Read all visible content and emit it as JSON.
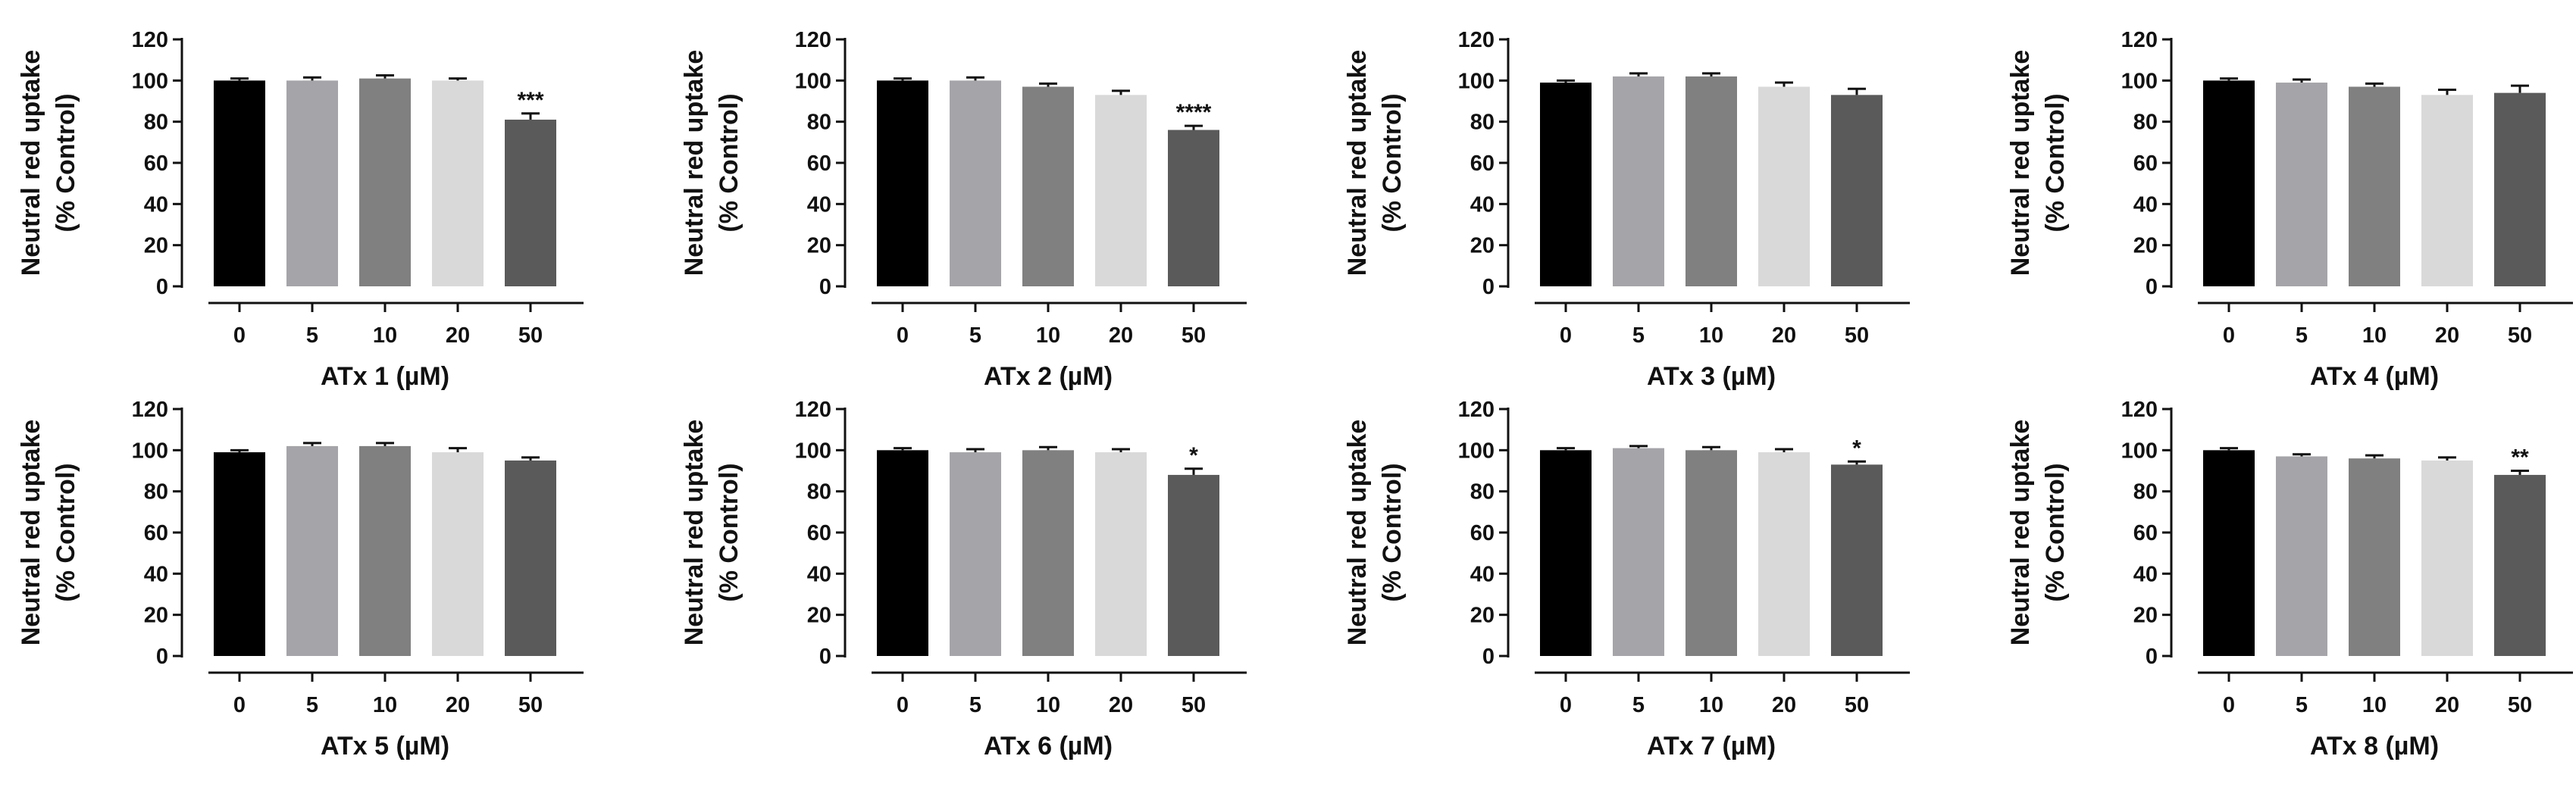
{
  "y_axis_label_line1": "Neutral red uptake",
  "y_axis_label_line2": "(% Control)",
  "colors": {
    "conc_0": "#000000",
    "conc_5": "#a5a5a9",
    "conc_10": "#808080",
    "conc_20": "#d9d9d9",
    "conc_50": "#5a5a5a",
    "axis": "#111111"
  },
  "chart_data": [
    {
      "type": "bar",
      "title": "",
      "xlabel": "ATx 1 (µM)",
      "ylabel": "Neutral red uptake (% Control)",
      "ylim": [
        0,
        120
      ],
      "yticks": [
        0,
        20,
        40,
        60,
        80,
        100,
        120
      ],
      "categories": [
        "0",
        "5",
        "10",
        "20",
        "50"
      ],
      "values": [
        100,
        100,
        101,
        100,
        81
      ],
      "errors": [
        1,
        1.5,
        1.5,
        1,
        3
      ],
      "significance": [
        "",
        "",
        "",
        "",
        "***"
      ]
    },
    {
      "type": "bar",
      "title": "",
      "xlabel": "ATx 2 (µM)",
      "ylabel": "Neutral red uptake (% Control)",
      "ylim": [
        0,
        120
      ],
      "yticks": [
        0,
        20,
        40,
        60,
        80,
        100,
        120
      ],
      "categories": [
        "0",
        "5",
        "10",
        "20",
        "50"
      ],
      "values": [
        100,
        100,
        97,
        93,
        76
      ],
      "errors": [
        1,
        1.5,
        1.5,
        2,
        2
      ],
      "significance": [
        "",
        "",
        "",
        "",
        "****"
      ]
    },
    {
      "type": "bar",
      "title": "",
      "xlabel": "ATx 3 (µM)",
      "ylabel": "Neutral red uptake (% Control)",
      "ylim": [
        0,
        120
      ],
      "yticks": [
        0,
        20,
        40,
        60,
        80,
        100,
        120
      ],
      "categories": [
        "0",
        "5",
        "10",
        "20",
        "50"
      ],
      "values": [
        99,
        102,
        102,
        97,
        93
      ],
      "errors": [
        1,
        1.5,
        1.5,
        2,
        3
      ],
      "significance": [
        "",
        "",
        "",
        "",
        ""
      ]
    },
    {
      "type": "bar",
      "title": "",
      "xlabel": "ATx 4 (µM)",
      "ylabel": "Neutral red uptake (% Control)",
      "ylim": [
        0,
        120
      ],
      "yticks": [
        0,
        20,
        40,
        60,
        80,
        100,
        120
      ],
      "categories": [
        "0",
        "5",
        "10",
        "20",
        "50"
      ],
      "values": [
        100,
        99,
        97,
        93,
        94
      ],
      "errors": [
        1,
        1.5,
        1.5,
        2.5,
        3.5
      ],
      "significance": [
        "",
        "",
        "",
        "",
        ""
      ]
    },
    {
      "type": "bar",
      "title": "",
      "xlabel": "ATx 5 (µM)",
      "ylabel": "Neutral red uptake (% Control)",
      "ylim": [
        0,
        120
      ],
      "yticks": [
        0,
        20,
        40,
        60,
        80,
        100,
        120
      ],
      "categories": [
        "0",
        "5",
        "10",
        "20",
        "50"
      ],
      "values": [
        99,
        102,
        102,
        99,
        95
      ],
      "errors": [
        1,
        1.5,
        1.5,
        2,
        1.5
      ],
      "significance": [
        "",
        "",
        "",
        "",
        ""
      ]
    },
    {
      "type": "bar",
      "title": "",
      "xlabel": "ATx 6 (µM)",
      "ylabel": "Neutral red uptake (% Control)",
      "ylim": [
        0,
        120
      ],
      "yticks": [
        0,
        20,
        40,
        60,
        80,
        100,
        120
      ],
      "categories": [
        "0",
        "5",
        "10",
        "20",
        "50"
      ],
      "values": [
        100,
        99,
        100,
        99,
        88
      ],
      "errors": [
        1,
        1.5,
        1.5,
        1.5,
        3
      ],
      "significance": [
        "",
        "",
        "",
        "",
        "*"
      ]
    },
    {
      "type": "bar",
      "title": "",
      "xlabel": "ATx 7 (µM)",
      "ylabel": "Neutral red uptake (% Control)",
      "ylim": [
        0,
        120
      ],
      "yticks": [
        0,
        20,
        40,
        60,
        80,
        100,
        120
      ],
      "categories": [
        "0",
        "5",
        "10",
        "20",
        "50"
      ],
      "values": [
        100,
        101,
        100,
        99,
        93
      ],
      "errors": [
        1,
        1,
        1.5,
        1.5,
        1.5
      ],
      "significance": [
        "",
        "",
        "",
        "",
        "*"
      ]
    },
    {
      "type": "bar",
      "title": "",
      "xlabel": "ATx  8 (µM)",
      "ylabel": "Neutral red uptake (% Control)",
      "ylim": [
        0,
        120
      ],
      "yticks": [
        0,
        20,
        40,
        60,
        80,
        100,
        120
      ],
      "categories": [
        "0",
        "5",
        "10",
        "20",
        "50"
      ],
      "values": [
        100,
        97,
        96,
        95,
        88
      ],
      "errors": [
        1,
        1,
        1.5,
        1.5,
        2
      ],
      "significance": [
        "",
        "",
        "",
        "",
        "**"
      ]
    }
  ]
}
